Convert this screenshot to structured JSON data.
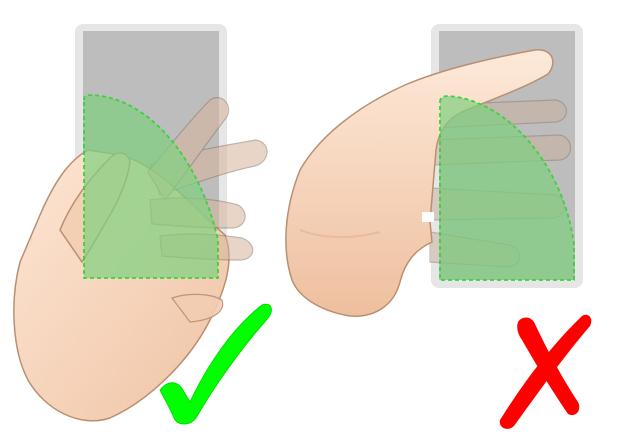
{
  "panels": [
    {
      "id": "correct",
      "verdict": "check",
      "verdict_color": "#00ff00"
    },
    {
      "id": "incorrect",
      "verdict": "cross",
      "verdict_color": "#ff0000"
    }
  ],
  "colors": {
    "phone_frame": "#e6e6e6",
    "phone_screen": "#bdbdbd",
    "thumb_zone_fill": "#7fd07f",
    "thumb_zone_stroke": "#3fcf3f",
    "skin": "#f5d3b9",
    "skin_shadow": "#e8b594",
    "skin_outline": "#b98f72"
  },
  "icons": [
    "check-icon",
    "cross-icon"
  ]
}
